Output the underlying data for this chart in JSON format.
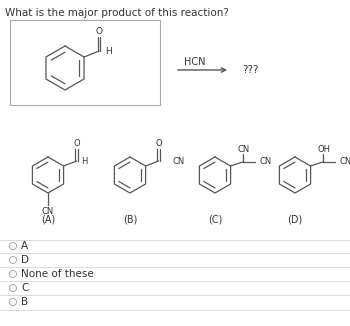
{
  "title": "What is the major product of this reaction?",
  "answer_choices": [
    "A",
    "D",
    "None of these",
    "C",
    "B"
  ],
  "bg_color": "#ffffff",
  "line_color": "#555555",
  "text_color": "#333333",
  "light_text": "#666666",
  "box_color": "#cccccc",
  "divider_color": "#cccccc"
}
